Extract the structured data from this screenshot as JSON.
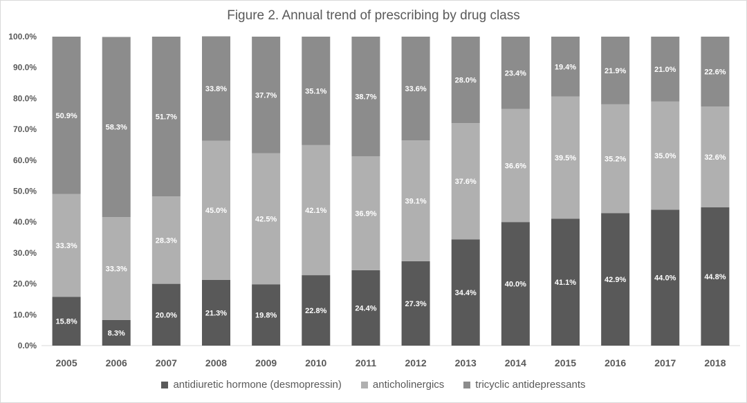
{
  "chart_data": {
    "type": "bar",
    "stacked": true,
    "title": "Figure 2. Annual trend of prescribing by drug class",
    "categories": [
      "2005",
      "2006",
      "2007",
      "2008",
      "2009",
      "2010",
      "2011",
      "2012",
      "2013",
      "2014",
      "2015",
      "2016",
      "2017",
      "2018"
    ],
    "series": [
      {
        "name": "antidiuretic hormone (desmopressin)",
        "color": "#595959",
        "values": [
          15.8,
          8.3,
          20.0,
          21.3,
          19.8,
          22.8,
          24.4,
          27.3,
          34.4,
          40.0,
          41.1,
          42.9,
          44.0,
          44.8
        ]
      },
      {
        "name": "anticholinergics",
        "color": "#b0b0b0",
        "values": [
          33.3,
          33.3,
          28.3,
          45.0,
          42.5,
          42.1,
          36.9,
          39.1,
          37.6,
          36.6,
          39.5,
          35.2,
          35.0,
          32.6
        ]
      },
      {
        "name": "tricyclic antidepressants",
        "color": "#8c8c8c",
        "values": [
          50.9,
          58.3,
          51.7,
          33.8,
          37.7,
          35.1,
          38.7,
          33.6,
          28.0,
          23.4,
          19.4,
          21.9,
          21.0,
          22.6
        ]
      }
    ],
    "data_labels": [
      [
        "15.8%",
        "8.3%",
        "20.0%",
        "21.3%",
        "19.8%",
        "22.8%",
        "24.4%",
        "27.3%",
        "34.4%",
        "40.0%",
        "41.1%",
        "42.9%",
        "44.0%",
        "44.8%"
      ],
      [
        "33.3%",
        "33.3%",
        "28.3%",
        "45.0%",
        "42.5%",
        "42.1%",
        "36.9%",
        "39.1%",
        "37.6%",
        "36.6%",
        "39.5%",
        "35.2%",
        "35.0%",
        "32.6%"
      ],
      [
        "50.9%",
        "58.3%",
        "51.7%",
        "33.8%",
        "37.7%",
        "35.1%",
        "38.7%",
        "33.6%",
        "28.0%",
        "23.4%",
        "19.4%",
        "21.9%",
        "21.0%",
        "22.6%"
      ]
    ],
    "ylim": [
      0,
      100
    ],
    "y_ticks": [
      "0.0%",
      "10.0%",
      "20.0%",
      "30.0%",
      "40.0%",
      "50.0%",
      "60.0%",
      "70.0%",
      "80.0%",
      "90.0%",
      "100.0%"
    ],
    "xlabel": "",
    "ylabel": "",
    "grid": false,
    "legend_position": "bottom"
  }
}
